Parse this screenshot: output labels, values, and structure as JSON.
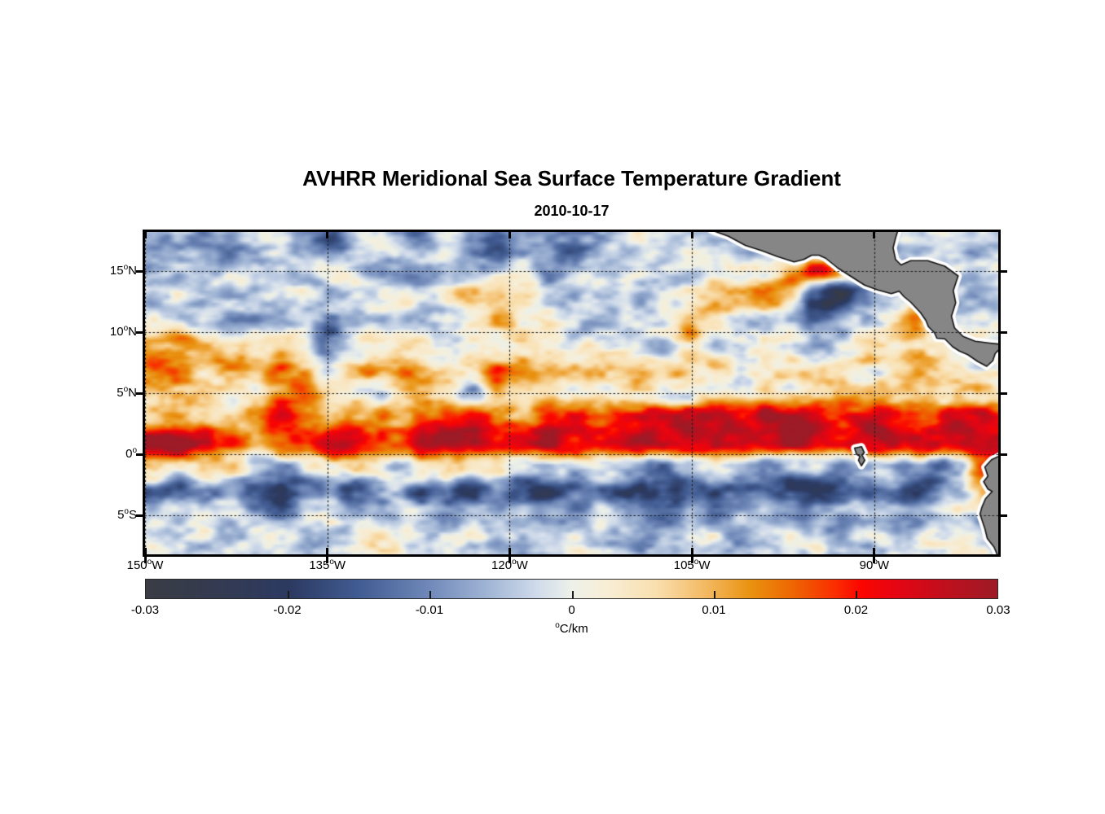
{
  "title": "AVHRR Meridional Sea Surface Temperature Gradient",
  "subtitle": "2010-10-17",
  "chart_data": {
    "type": "heatmap",
    "title": "AVHRR Meridional Sea Surface Temperature Gradient",
    "date": "2010-10-17",
    "units": "degC/km",
    "lon_range": [
      -150,
      -79.8
    ],
    "lat_range": [
      18.2,
      -8.2
    ],
    "x_ticks": [
      {
        "num": "150",
        "deg": "o",
        "suffix": "W",
        "lon": -150
      },
      {
        "num": "135",
        "deg": "o",
        "suffix": "W",
        "lon": -135
      },
      {
        "num": "120",
        "deg": "o",
        "suffix": "W",
        "lon": -120
      },
      {
        "num": "105",
        "deg": "o",
        "suffix": "W",
        "lon": -105
      },
      {
        "num": "90",
        "deg": "o",
        "suffix": "W",
        "lon": -90
      }
    ],
    "y_ticks": [
      {
        "num": "15",
        "deg": "o",
        "suffix": "N",
        "lat": 15
      },
      {
        "num": "10",
        "deg": "o",
        "suffix": "N",
        "lat": 10
      },
      {
        "num": "5",
        "deg": "o",
        "suffix": "N",
        "lat": 5
      },
      {
        "num": "0",
        "deg": "o",
        "suffix": "",
        "lat": 0
      },
      {
        "num": "5",
        "deg": "o",
        "suffix": "S",
        "lat": -5
      }
    ],
    "grid": {
      "comment": "meridional SST gradient, units = scale * value (degC/km), 2 deg cells",
      "scale": 0.001,
      "lon_start": -149,
      "lon_step": 2,
      "lat_start": 17,
      "lat_step": -2,
      "values": [
        [
          -5,
          -2,
          -6,
          -9,
          -4,
          -1,
          -8,
          -12,
          -6,
          -2,
          -5,
          -8,
          -4,
          -9,
          -15,
          -13,
          -8,
          -12,
          -9,
          -5,
          -2,
          -6,
          -3,
          -1,
          -4,
          -2,
          0,
          -3,
          -2,
          -4,
          -6,
          -3,
          -2,
          -4,
          -3,
          -2
        ],
        [
          -3,
          -6,
          -9,
          -4,
          -1,
          -4,
          -2,
          0,
          -3,
          -7,
          -10,
          -4,
          -1,
          -3,
          -6,
          -2,
          -8,
          -4,
          -1,
          -3,
          0,
          -2,
          -5,
          -2,
          0,
          2,
          10,
          26,
          16,
          -4,
          -2,
          0,
          2,
          -2,
          -4,
          -2
        ],
        [
          -2,
          -4,
          -1,
          -5,
          -8,
          -3,
          0,
          -4,
          -1,
          -3,
          0,
          -2,
          6,
          10,
          12,
          7,
          -2,
          -5,
          -2,
          -4,
          -7,
          -2,
          2,
          8,
          12,
          14,
          8,
          -20,
          -28,
          -16,
          -4,
          2,
          4,
          -2,
          -4,
          -3
        ],
        [
          -2,
          -5,
          -3,
          -7,
          -10,
          -4,
          -1,
          -10,
          -5,
          -2,
          -4,
          -6,
          -2,
          5,
          7,
          5,
          3,
          -2,
          -6,
          -3,
          -1,
          3,
          9,
          7,
          -2,
          -4,
          -2,
          -12,
          -8,
          -3,
          4,
          16,
          -3,
          -5,
          -3,
          -2
        ],
        [
          12,
          15,
          7,
          3,
          9,
          6,
          2,
          -13,
          -4,
          3,
          6,
          2,
          -2,
          4,
          2,
          6,
          3,
          -2,
          4,
          2,
          -2,
          -4,
          6,
          -6,
          -2,
          2,
          4,
          -5,
          -2,
          2,
          6,
          9,
          4,
          2,
          0,
          2
        ],
        [
          17,
          14,
          9,
          12,
          7,
          13,
          9,
          -5,
          7,
          12,
          14,
          8,
          4,
          9,
          16,
          13,
          8,
          10,
          6,
          4,
          8,
          6,
          4,
          6,
          4,
          2,
          4,
          3,
          6,
          4,
          2,
          7,
          4,
          2,
          3,
          2
        ],
        [
          5,
          3,
          7,
          2,
          6,
          10,
          12,
          7,
          2,
          -7,
          4,
          8,
          2,
          -9,
          6,
          10,
          4,
          2,
          6,
          2,
          4,
          2,
          0,
          4,
          2,
          6,
          2,
          4,
          8,
          6,
          10,
          6,
          4,
          8,
          4,
          2
        ],
        [
          10,
          8,
          6,
          10,
          14,
          20,
          14,
          10,
          16,
          12,
          8,
          14,
          18,
          22,
          16,
          12,
          18,
          22,
          18,
          24,
          26,
          22,
          26,
          28,
          24,
          26,
          28,
          24,
          20,
          24,
          26,
          22,
          18,
          24,
          26,
          22
        ],
        [
          28,
          30,
          26,
          18,
          12,
          16,
          22,
          26,
          28,
          22,
          16,
          24,
          28,
          26,
          22,
          26,
          28,
          24,
          26,
          28,
          30,
          28,
          30,
          29,
          26,
          29,
          30,
          28,
          24,
          28,
          30,
          29,
          26,
          28,
          30,
          28
        ],
        [
          8,
          6,
          10,
          4,
          -2,
          -6,
          -4,
          2,
          6,
          4,
          -2,
          4,
          8,
          6,
          2,
          -4,
          -8,
          -4,
          2,
          -2,
          -6,
          -10,
          -6,
          -2,
          -8,
          -12,
          -8,
          -4,
          -10,
          -6,
          -2,
          -8,
          -14,
          -6,
          16,
          20
        ],
        [
          -12,
          -16,
          -12,
          -8,
          -14,
          -18,
          -14,
          -10,
          -16,
          -12,
          -8,
          -14,
          -18,
          -16,
          -12,
          -16,
          -20,
          -16,
          -12,
          -16,
          -20,
          -18,
          -14,
          -18,
          -16,
          -12,
          -16,
          -20,
          -16,
          -12,
          -14,
          -18,
          -12,
          -8,
          6,
          -4
        ],
        [
          -4,
          -8,
          -4,
          0,
          -6,
          -10,
          -6,
          -2,
          -8,
          -4,
          0,
          -6,
          -10,
          -8,
          -4,
          -8,
          -12,
          -8,
          -4,
          -8,
          -12,
          -10,
          -6,
          -10,
          -8,
          -4,
          -8,
          -12,
          -8,
          -4,
          -6,
          -10,
          -6,
          -2,
          -4,
          -8
        ],
        [
          -2,
          2,
          -2,
          -6,
          -2,
          2,
          -2,
          -6,
          -3,
          1,
          -3,
          -7,
          -3,
          1,
          -3,
          -6,
          -2,
          2,
          -2,
          -5,
          -8,
          -4,
          0,
          -4,
          -7,
          -3,
          1,
          -3,
          -6,
          -2,
          0,
          -4,
          -2,
          2,
          -2,
          -4
        ],
        [
          0,
          -3,
          1,
          -2,
          -5,
          -1,
          2,
          -2,
          -4,
          0,
          2,
          -2,
          -5,
          -2,
          1,
          -3,
          -6,
          -2,
          1,
          -2,
          -4,
          -1,
          2,
          -1,
          -4,
          -2,
          0,
          -3,
          -5,
          -1,
          1,
          -2,
          -4,
          -1,
          1,
          -2
        ]
      ]
    },
    "noise": {
      "seed": 7,
      "octaves": [
        {
          "amp": 5.5,
          "sx": 2.2,
          "sy": 1.1,
          "ox": 0,
          "oy": 0
        },
        {
          "amp": 3.5,
          "sx": 1.05,
          "sy": 0.58,
          "ox": 37.2,
          "oy": 11.7
        },
        {
          "amp": 1.6,
          "sx": 0.55,
          "sy": 0.33,
          "ox": 91.3,
          "oy": 53.9
        }
      ]
    },
    "colorbar": {
      "min": -0.03,
      "max": 0.03,
      "tick_labels": [
        "-0.03",
        "-0.02",
        "-0.01",
        "0",
        "0.01",
        "0.02",
        "0.03"
      ],
      "unit_sup": "o",
      "unit_text": "C/km",
      "stops": [
        {
          "t": 0.0,
          "c": "#3a3d44"
        },
        {
          "t": 0.08,
          "c": "#343a50"
        },
        {
          "t": 0.17,
          "c": "#2c3a62"
        },
        {
          "t": 0.25,
          "c": "#415c92"
        },
        {
          "t": 0.33,
          "c": "#6e87b8"
        },
        {
          "t": 0.4,
          "c": "#9fb4d4"
        },
        {
          "t": 0.46,
          "c": "#d0dbeb"
        },
        {
          "t": 0.5,
          "c": "#edf1e9"
        },
        {
          "t": 0.54,
          "c": "#f8eed6"
        },
        {
          "t": 0.6,
          "c": "#f9dfae"
        },
        {
          "t": 0.66,
          "c": "#f3b75e"
        },
        {
          "t": 0.71,
          "c": "#e9920f"
        },
        {
          "t": 0.76,
          "c": "#ee6502"
        },
        {
          "t": 0.81,
          "c": "#fa2d00"
        },
        {
          "t": 0.84,
          "c": "#fb0500"
        },
        {
          "t": 0.88,
          "c": "#e60513"
        },
        {
          "t": 0.93,
          "c": "#c50d1b"
        },
        {
          "t": 1.0,
          "c": "#9c1b26"
        }
      ]
    },
    "style": {
      "land_color": "#868686",
      "coast_outline": "#141414",
      "coast_halo": "#ffffff",
      "grid_color": "#1c1c1c",
      "frame_color": "#000000"
    },
    "land_polygons": {
      "central_america": [
        [
          -103.4,
          18.35
        ],
        [
          -102.0,
          17.85
        ],
        [
          -100.6,
          17.1
        ],
        [
          -99.2,
          16.65
        ],
        [
          -98.0,
          16.2
        ],
        [
          -96.6,
          15.75
        ],
        [
          -95.8,
          15.95
        ],
        [
          -95.15,
          16.3
        ],
        [
          -94.55,
          16.3
        ],
        [
          -94.0,
          16.05
        ],
        [
          -93.0,
          15.25
        ],
        [
          -91.9,
          14.55
        ],
        [
          -90.8,
          13.85
        ],
        [
          -89.7,
          13.45
        ],
        [
          -88.6,
          13.15
        ],
        [
          -87.95,
          13.35
        ],
        [
          -87.55,
          12.9
        ],
        [
          -87.0,
          12.45
        ],
        [
          -86.2,
          11.6
        ],
        [
          -85.75,
          10.95
        ],
        [
          -85.55,
          10.45
        ],
        [
          -85.05,
          9.95
        ],
        [
          -84.85,
          9.5
        ],
        [
          -84.2,
          9.45
        ],
        [
          -83.55,
          8.8
        ],
        [
          -83.0,
          8.45
        ],
        [
          -82.3,
          8.15
        ],
        [
          -81.5,
          7.6
        ],
        [
          -80.75,
          7.2
        ],
        [
          -80.25,
          7.65
        ],
        [
          -80.05,
          8.25
        ],
        [
          -79.6,
          8.7
        ],
        [
          -79.6,
          9.0
        ],
        [
          -80.5,
          9.1
        ],
        [
          -81.7,
          9.25
        ],
        [
          -82.7,
          9.65
        ],
        [
          -83.4,
          10.35
        ],
        [
          -83.65,
          11.3
        ],
        [
          -83.3,
          12.4
        ],
        [
          -83.5,
          13.4
        ],
        [
          -83.1,
          14.6
        ],
        [
          -84.2,
          15.4
        ],
        [
          -85.6,
          15.85
        ],
        [
          -87.0,
          15.85
        ],
        [
          -87.8,
          15.5
        ],
        [
          -88.25,
          15.95
        ],
        [
          -88.45,
          16.9
        ],
        [
          -88.25,
          17.7
        ],
        [
          -88.05,
          18.35
        ]
      ],
      "south_america": [
        [
          -79.6,
          -0.1
        ],
        [
          -80.35,
          -0.45
        ],
        [
          -80.9,
          -1.05
        ],
        [
          -80.65,
          -1.8
        ],
        [
          -81.0,
          -2.25
        ],
        [
          -80.65,
          -2.85
        ],
        [
          -80.3,
          -3.05
        ],
        [
          -80.85,
          -3.65
        ],
        [
          -81.15,
          -4.35
        ],
        [
          -81.3,
          -4.9
        ],
        [
          -81.1,
          -5.5
        ],
        [
          -80.9,
          -6.1
        ],
        [
          -80.7,
          -6.9
        ],
        [
          -80.15,
          -7.6
        ],
        [
          -79.85,
          -8.3
        ],
        [
          -79.6,
          -8.3
        ]
      ],
      "galapagos": [
        [
          -91.62,
          0.5
        ],
        [
          -91.05,
          0.62
        ],
        [
          -90.82,
          0.12
        ],
        [
          -91.02,
          -0.05
        ],
        [
          -90.78,
          -0.5
        ],
        [
          -91.06,
          -0.95
        ],
        [
          -91.3,
          -0.5
        ],
        [
          -91.18,
          -0.18
        ],
        [
          -91.46,
          0.0
        ]
      ]
    }
  }
}
